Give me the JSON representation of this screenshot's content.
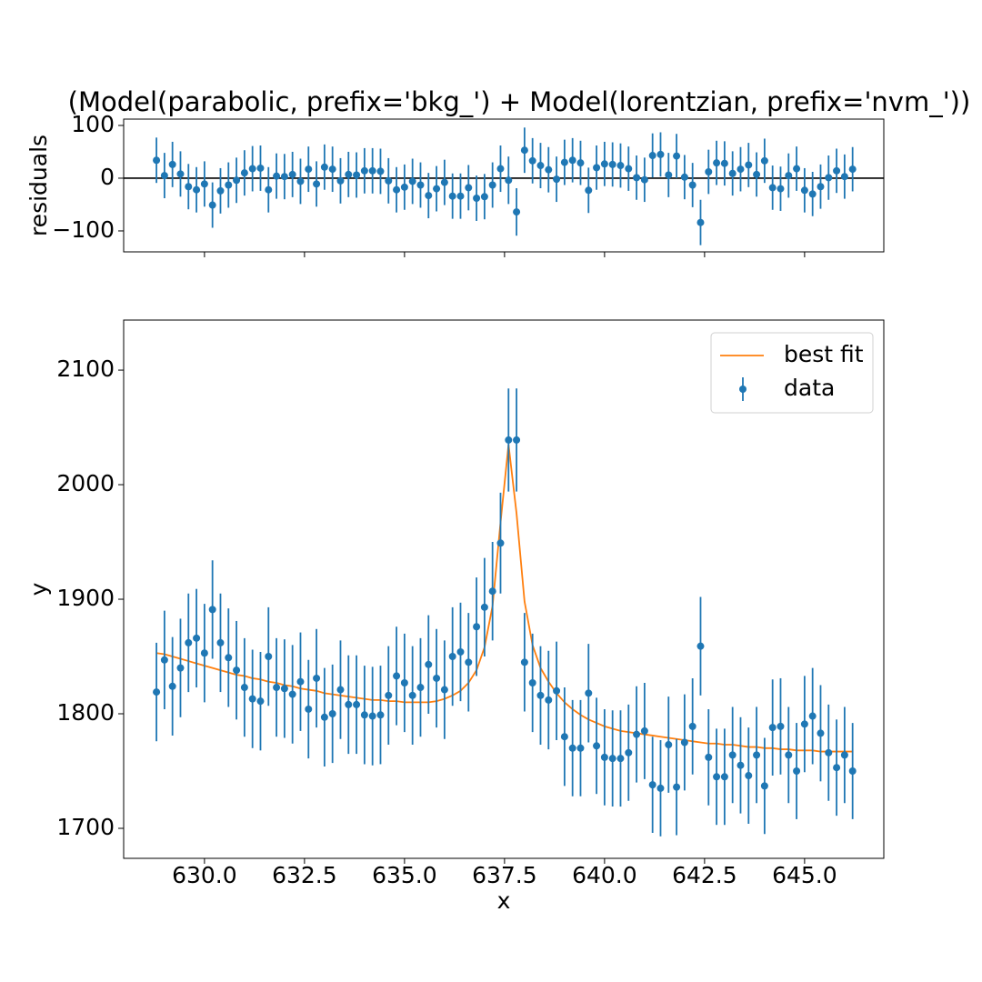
{
  "chart_data": [
    {
      "type": "errorbar",
      "title": "(Model(parabolic, prefix='bkg_') + Model(lorentzian, prefix='nvm_'))",
      "ylabel": "residuals",
      "x": [
        628.8,
        629.0,
        629.2,
        629.4,
        629.6,
        629.8,
        630.0,
        630.2,
        630.4,
        630.6,
        630.8,
        631.0,
        631.2,
        631.4,
        631.6,
        631.8,
        632.0,
        632.2,
        632.4,
        632.6,
        632.8,
        633.0,
        633.2,
        633.4,
        633.6,
        633.8,
        634.0,
        634.2,
        634.4,
        634.6,
        634.8,
        635.0,
        635.2,
        635.4,
        635.6,
        635.8,
        636.0,
        636.2,
        636.4,
        636.6,
        636.8,
        637.0,
        637.2,
        637.4,
        637.6,
        637.8,
        638.0,
        638.2,
        638.4,
        638.6,
        638.8,
        639.0,
        639.2,
        639.4,
        639.6,
        639.8,
        640.0,
        640.2,
        640.4,
        640.6,
        640.8,
        641.0,
        641.2,
        641.4,
        641.6,
        641.8,
        642.0,
        642.2,
        642.4,
        642.6,
        642.8,
        643.0,
        643.2,
        643.4,
        643.6,
        643.8,
        644.0,
        644.2,
        644.4,
        644.6,
        644.8,
        645.0,
        645.2,
        645.4,
        645.6,
        645.8,
        646.0,
        646.2
      ],
      "series": [
        {
          "kind": "errorbar",
          "color": "#1f77b4",
          "values": [
            34,
            5,
            26,
            8,
            -16,
            -22,
            -11,
            -51,
            -24,
            -13,
            -4,
            10,
            18,
            19,
            -22,
            4,
            3,
            7,
            -6,
            17,
            -11,
            21,
            17,
            -5,
            7,
            6,
            14,
            14,
            13,
            -5,
            -22,
            -17,
            -6,
            -13,
            -33,
            -20,
            -8,
            -34,
            -34,
            -18,
            -38,
            -35,
            -13,
            18,
            -4,
            -64,
            53,
            33,
            24,
            16,
            -2,
            30,
            34,
            29,
            -23,
            20,
            27,
            26,
            24,
            18,
            1,
            -3,
            43,
            45,
            6,
            42,
            2,
            -13,
            -84,
            12,
            29,
            28,
            9,
            17,
            25,
            7,
            33,
            -18,
            -20,
            5,
            18,
            -23,
            -30,
            -16,
            1,
            14,
            3,
            17
          ],
          "errors": [
            43,
            43,
            43,
            43,
            43,
            43,
            43,
            43,
            43,
            43,
            43,
            43,
            43,
            43,
            43,
            43,
            43,
            43,
            43,
            43,
            43,
            43,
            43,
            43,
            43,
            43,
            43,
            43,
            43,
            43,
            43,
            43,
            43,
            43,
            43,
            43,
            43,
            43,
            43,
            43,
            43,
            43,
            43,
            44,
            45,
            45,
            43,
            43,
            43,
            43,
            43,
            43,
            42,
            42,
            43,
            42,
            42,
            42,
            42,
            42,
            42,
            42,
            42,
            42,
            42,
            42,
            42,
            42,
            43,
            42,
            42,
            42,
            42,
            42,
            42,
            42,
            42,
            42,
            42,
            42,
            42,
            42,
            42,
            42,
            42,
            42,
            42,
            42
          ]
        }
      ],
      "xlim": [
        627.98,
        646.98
      ],
      "xticks": [
        630,
        632.5,
        635,
        637.5,
        640,
        642.5,
        645
      ],
      "ylim": [
        -139.7,
        112
      ],
      "yticks": [
        {
          "value": -100,
          "label": "−100"
        },
        0,
        100
      ]
    },
    {
      "type": "errorbar",
      "xlabel": "x",
      "ylabel": "y",
      "legend": "upper right",
      "x": [
        628.8,
        629.0,
        629.2,
        629.4,
        629.6,
        629.8,
        630.0,
        630.2,
        630.4,
        630.6,
        630.8,
        631.0,
        631.2,
        631.4,
        631.6,
        631.8,
        632.0,
        632.2,
        632.4,
        632.6,
        632.8,
        633.0,
        633.2,
        633.4,
        633.6,
        633.8,
        634.0,
        634.2,
        634.4,
        634.6,
        634.8,
        635.0,
        635.2,
        635.4,
        635.6,
        635.8,
        636.0,
        636.2,
        636.4,
        636.6,
        636.8,
        637.0,
        637.2,
        637.4,
        637.6,
        637.8,
        638.0,
        638.2,
        638.4,
        638.6,
        638.8,
        639.0,
        639.2,
        639.4,
        639.6,
        639.8,
        640.0,
        640.2,
        640.4,
        640.6,
        640.8,
        641.0,
        641.2,
        641.4,
        641.6,
        641.8,
        642.0,
        642.2,
        642.4,
        642.6,
        642.8,
        643.0,
        643.2,
        643.4,
        643.6,
        643.8,
        644.0,
        644.2,
        644.4,
        644.6,
        644.8,
        645.0,
        645.2,
        645.4,
        645.6,
        645.8,
        646.0,
        646.2
      ],
      "series": [
        {
          "name": "best fit",
          "kind": "line",
          "color": "#ff7f0e",
          "values": [
            1853,
            1852,
            1850,
            1848,
            1846,
            1844,
            1842,
            1840,
            1838,
            1836,
            1834,
            1833,
            1831,
            1830,
            1828,
            1827,
            1825,
            1824,
            1822,
            1821,
            1820,
            1818,
            1817,
            1816,
            1815,
            1814,
            1813,
            1812,
            1812,
            1811,
            1811,
            1810,
            1810,
            1810,
            1810,
            1811,
            1813,
            1816,
            1820,
            1827,
            1838,
            1858,
            1894,
            1967,
            2035,
            1975,
            1898,
            1860,
            1840,
            1828,
            1818,
            1810,
            1804,
            1799,
            1795,
            1792,
            1789,
            1787,
            1785,
            1784,
            1783,
            1782,
            1781,
            1780,
            1779,
            1778,
            1777,
            1776,
            1775,
            1774,
            1774,
            1773,
            1773,
            1772,
            1771,
            1771,
            1770,
            1770,
            1769,
            1769,
            1768,
            1768,
            1768,
            1767,
            1767,
            1767,
            1767,
            1767
          ]
        },
        {
          "name": "data",
          "kind": "errorbar",
          "color": "#1f77b4",
          "values": [
            1819,
            1847,
            1824,
            1840,
            1862,
            1866,
            1853,
            1891,
            1862,
            1849,
            1838,
            1823,
            1813,
            1811,
            1850,
            1823,
            1822,
            1817,
            1828,
            1804,
            1831,
            1797,
            1800,
            1821,
            1808,
            1808,
            1799,
            1798,
            1799,
            1816,
            1833,
            1827,
            1816,
            1823,
            1843,
            1831,
            1821,
            1850,
            1854,
            1845,
            1876,
            1893,
            1907,
            1949,
            2039,
            2039,
            1845,
            1827,
            1816,
            1812,
            1820,
            1780,
            1770,
            1770,
            1818,
            1772,
            1762,
            1761,
            1761,
            1766,
            1782,
            1785,
            1738,
            1735,
            1773,
            1736,
            1775,
            1789,
            1859,
            1762,
            1745,
            1745,
            1764,
            1755,
            1746,
            1764,
            1737,
            1788,
            1789,
            1764,
            1750,
            1791,
            1798,
            1783,
            1766,
            1753,
            1764,
            1750
          ],
          "errors": [
            43,
            43,
            43,
            43,
            43,
            43,
            43,
            43,
            43,
            43,
            43,
            43,
            43,
            43,
            43,
            43,
            43,
            43,
            43,
            43,
            43,
            43,
            43,
            43,
            43,
            43,
            43,
            43,
            43,
            43,
            43,
            43,
            43,
            43,
            43,
            43,
            43,
            43,
            43,
            43,
            43,
            43,
            43,
            44,
            45,
            45,
            43,
            43,
            43,
            43,
            43,
            43,
            42,
            42,
            43,
            42,
            42,
            42,
            42,
            42,
            42,
            42,
            42,
            42,
            42,
            42,
            42,
            42,
            43,
            42,
            42,
            42,
            42,
            42,
            42,
            42,
            42,
            42,
            42,
            42,
            42,
            42,
            42,
            42,
            42,
            42,
            42,
            42
          ]
        }
      ],
      "xlim": [
        627.98,
        646.98
      ],
      "xticks": [
        {
          "value": 630,
          "label": "630.0"
        },
        {
          "value": 632.5,
          "label": "632.5"
        },
        {
          "value": 635,
          "label": "635.0"
        },
        {
          "value": 637.5,
          "label": "637.5"
        },
        {
          "value": 640,
          "label": "640.0"
        },
        {
          "value": 642.5,
          "label": "642.5"
        },
        {
          "value": 645,
          "label": "645.0"
        }
      ],
      "ylim": [
        1673.8,
        2143.7
      ],
      "yticks": [
        1700,
        1800,
        1900,
        2000,
        2100
      ]
    }
  ]
}
